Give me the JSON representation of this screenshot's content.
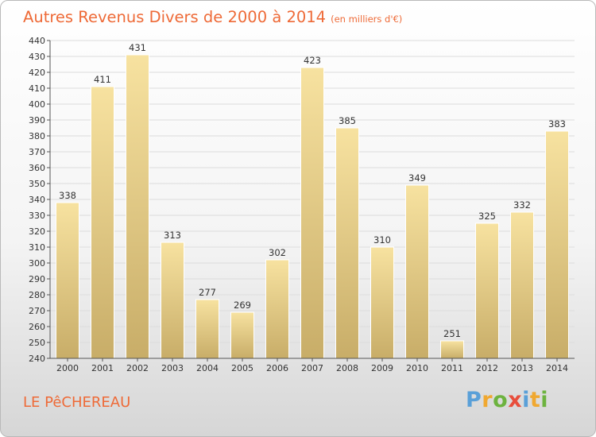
{
  "header": {
    "title": "Autres Revenus Divers de 2000 à 2014",
    "subtitle": "(en milliers d'€)"
  },
  "footer": {
    "commune": "LE PêCHEREAU",
    "logo_letters": [
      "P",
      "r",
      "o",
      "x",
      "i",
      "t",
      "i"
    ],
    "logo_colors": [
      "#5aa0d8",
      "#f0a830",
      "#6db33f",
      "#e84e3c",
      "#5aa0d8",
      "#f0a830",
      "#6db33f"
    ]
  },
  "colors": {
    "title": "#ee6a37",
    "bar_top": "#f7e2a0",
    "bar_bottom": "#c8ad68",
    "grid": "#dcdcdc",
    "axis": "#555555"
  },
  "chart_data": {
    "type": "bar",
    "title": "Autres Revenus Divers de 2000 à 2014",
    "subtitle": "(en milliers d'€)",
    "categories": [
      "2000",
      "2001",
      "2002",
      "2003",
      "2004",
      "2005",
      "2006",
      "2007",
      "2008",
      "2009",
      "2010",
      "2011",
      "2012",
      "2013",
      "2014"
    ],
    "values": [
      338,
      411,
      431,
      313,
      277,
      269,
      302,
      423,
      385,
      310,
      349,
      251,
      325,
      332,
      383
    ],
    "ylim": [
      240,
      440
    ],
    "ytick_step": 10,
    "grid": true,
    "legend": "none"
  }
}
